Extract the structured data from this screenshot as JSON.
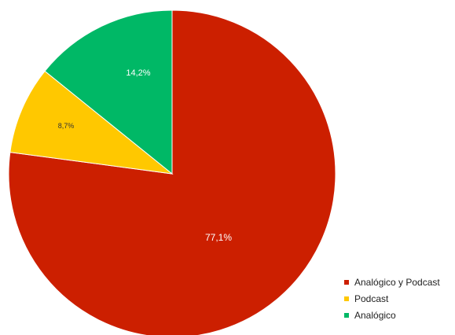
{
  "chart_data": {
    "type": "pie",
    "title": "",
    "slices": [
      {
        "label": "Analógico y Podcast",
        "value": 77.1,
        "display": "77,1%",
        "color": "#cc1f00"
      },
      {
        "label": "Podcast",
        "value": 8.7,
        "display": "8,7%",
        "color": "#ffc800"
      },
      {
        "label": "Analógico",
        "value": 14.2,
        "display": "14,2%",
        "color": "#00b866"
      }
    ],
    "start": "12 o'clock",
    "direction": "clockwise",
    "legend": {
      "position": "bottom-right"
    }
  }
}
